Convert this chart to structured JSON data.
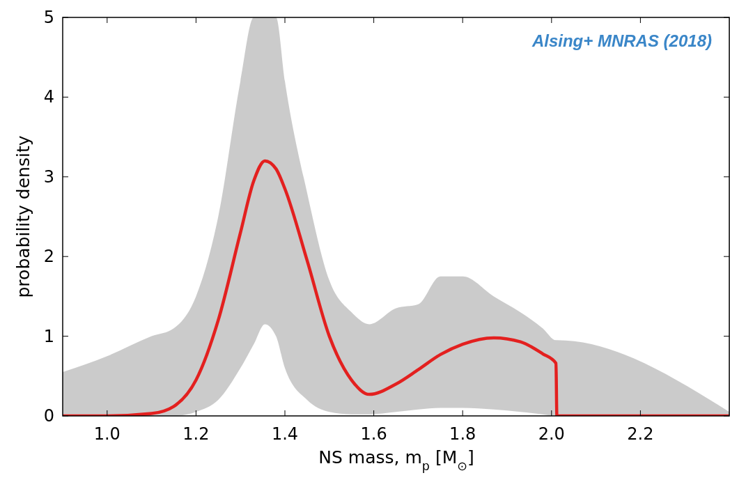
{
  "chart_data": {
    "type": "line",
    "xlabel": "NS mass, m$_{p}$ [M$_{⊙}$]",
    "ylabel": "probability density",
    "annotations": [
      "Alsing+ MNRAS (2018)"
    ],
    "x": [
      0.9,
      1.0,
      1.1,
      1.15,
      1.2,
      1.25,
      1.3,
      1.33,
      1.355,
      1.38,
      1.4,
      1.45,
      1.5,
      1.55,
      1.59,
      1.65,
      1.7,
      1.75,
      1.8,
      1.87,
      1.93,
      1.98,
      2.01,
      2.012,
      2.4
    ],
    "series": [
      {
        "color": "#e3201f",
        "values": [
          0,
          0,
          0.03,
          0.12,
          0.45,
          1.2,
          2.3,
          2.95,
          3.2,
          3.1,
          2.85,
          1.95,
          1.0,
          0.45,
          0.27,
          0.4,
          0.58,
          0.77,
          0.9,
          0.98,
          0.93,
          0.78,
          0.66,
          0,
          0
        ],
        "lower": [
          0,
          0,
          0,
          0,
          0.05,
          0.2,
          0.6,
          0.9,
          1.15,
          1.0,
          0.6,
          0.2,
          0.05,
          0.02,
          0.02,
          0.05,
          0.08,
          0.1,
          0.1,
          0.08,
          0.05,
          0.02,
          0,
          0,
          0
        ],
        "upper": [
          0.55,
          0.75,
          1.0,
          1.1,
          1.5,
          2.5,
          4.2,
          5.0,
          5.0,
          5.0,
          4.2,
          2.8,
          1.7,
          1.3,
          1.15,
          1.35,
          1.4,
          1.75,
          1.75,
          1.5,
          1.3,
          1.1,
          0.95,
          0.95,
          0.05
        ]
      }
    ],
    "xlim": [
      0.9,
      2.4
    ],
    "xticks": [
      {
        "value": 1.0,
        "label": "1.0"
      },
      1.2,
      1.4,
      1.6,
      1.8,
      {
        "value": 2.0,
        "label": "2.0"
      },
      2.2
    ],
    "ylim": [
      0,
      5
    ],
    "yticks": [
      0,
      1,
      2,
      3,
      4,
      5
    ],
    "grid": false,
    "marker": "none",
    "line_style": "solid"
  }
}
